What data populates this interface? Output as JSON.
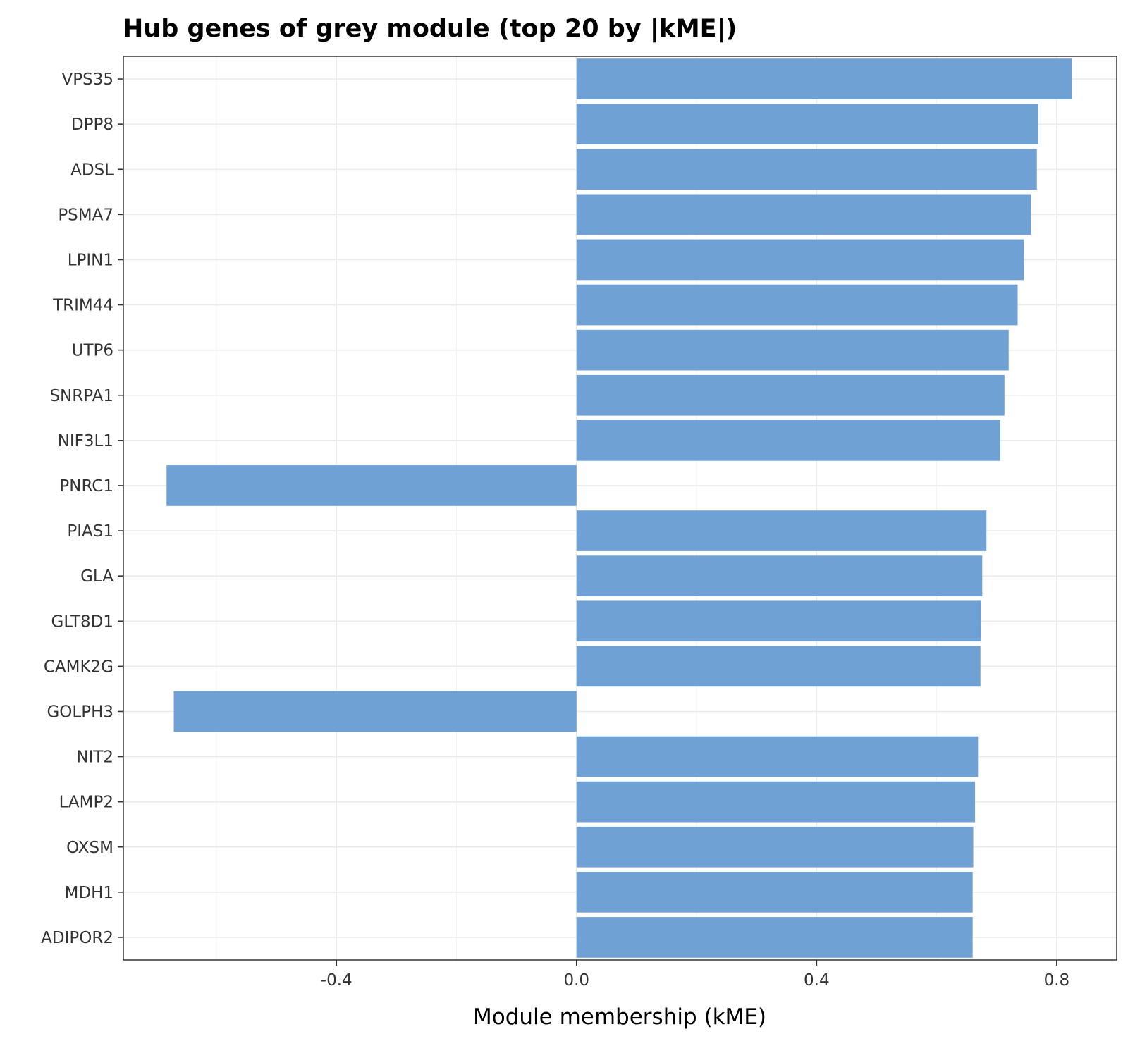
{
  "chart_data": {
    "type": "bar",
    "orientation": "horizontal",
    "title": "Hub genes of grey module (top 20 by |kME|)",
    "xlabel": "Module membership (kME)",
    "ylabel": "",
    "xlim": [
      -0.755,
      0.9
    ],
    "xticks": [
      -0.4,
      0.0,
      0.4,
      0.8
    ],
    "xtick_labels": [
      "-0.4",
      "0.0",
      "0.4",
      "0.8"
    ],
    "grid": true,
    "bar_color": "#6fa1d5",
    "categories": [
      "VPS35",
      "DPP8",
      "ADSL",
      "PSMA7",
      "LPIN1",
      "TRIM44",
      "UTP6",
      "SNRPA1",
      "NIF3L1",
      "PNRC1",
      "PIAS1",
      "GLA",
      "GLT8D1",
      "CAMK2G",
      "GOLPH3",
      "NIT2",
      "LAMP2",
      "OXSM",
      "MDH1",
      "ADIPOR2"
    ],
    "values": [
      0.825,
      0.769,
      0.767,
      0.757,
      0.745,
      0.735,
      0.72,
      0.713,
      0.706,
      -0.683,
      0.683,
      0.676,
      0.674,
      0.673,
      -0.671,
      0.669,
      0.664,
      0.661,
      0.66,
      0.66
    ]
  }
}
